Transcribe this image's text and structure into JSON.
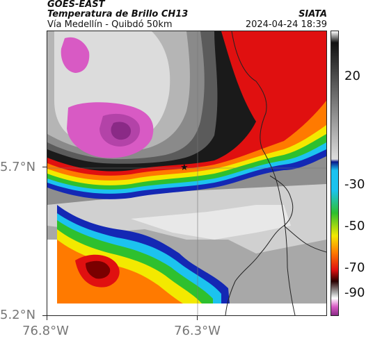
{
  "header": {
    "satellite": "GOES-EAST",
    "product": "Temperatura de Brillo CH13",
    "region": "Vía Medellín - Quibdó 50km",
    "agency": "SIATA",
    "datetime": "2024-04-24 18:39"
  },
  "axes": {
    "lat_labels": [
      "5.7°N",
      "5.2°N"
    ],
    "lon_labels": [
      "76.8°W",
      "76.3°W"
    ]
  },
  "colorbar": {
    "labels": [
      "20",
      "-30",
      "-50",
      "-70",
      "-90"
    ]
  },
  "colors": {
    "magenta": "#d85ac4",
    "black": "#1a1a1a",
    "red": "#e01010",
    "orange": "#ff7a00",
    "yellow": "#f3e900",
    "green": "#2ec02e",
    "cyan": "#1cc3ef",
    "blue": "#1428b4",
    "gray": "#9a9a9a"
  }
}
